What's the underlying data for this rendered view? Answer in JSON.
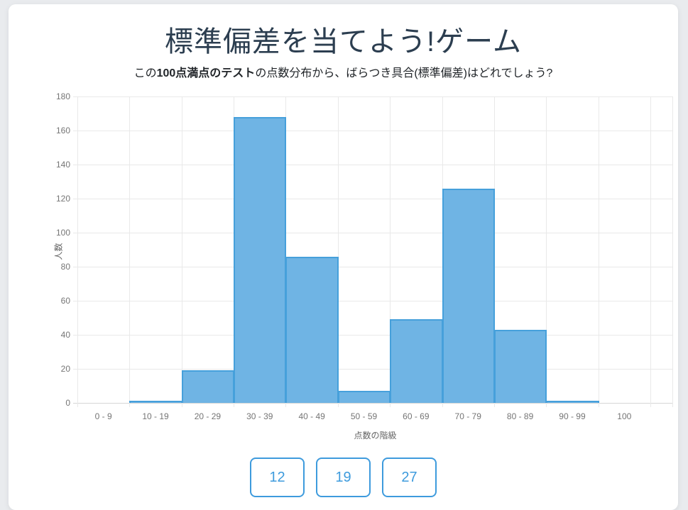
{
  "page": {
    "title": "標準偏差を当てよう!ゲーム",
    "subtitle_prefix": "この",
    "subtitle_bold": "100点満点のテスト",
    "subtitle_suffix": "の点数分布から、ばらつき具合(標準偏差)はどれでしょう?"
  },
  "chart_data": {
    "type": "bar",
    "title": "",
    "categories": [
      "0 - 9",
      "10 - 19",
      "20 - 29",
      "30 - 39",
      "40 - 49",
      "50 - 59",
      "60 - 69",
      "70 - 79",
      "80 - 89",
      "90 - 99",
      "100"
    ],
    "values": [
      0,
      1,
      19,
      168,
      86,
      7,
      49,
      126,
      43,
      1,
      0
    ],
    "xlabel": "点数の階級",
    "ylabel": "人数",
    "ylim": [
      0,
      180
    ],
    "ytick_step": 20,
    "yticks": [
      0,
      20,
      40,
      60,
      80,
      100,
      120,
      140,
      160,
      180
    ],
    "grid": true,
    "legend": false,
    "bar_style": "histogram-touching"
  },
  "answers": [
    {
      "label": "12"
    },
    {
      "label": "19"
    },
    {
      "label": "27"
    }
  ],
  "colors": {
    "page_bg": "#e9ebee",
    "card_bg": "#ffffff",
    "title_text": "#2c3e50",
    "subtitle_text": "#212529",
    "bar_fill": "#6fb4e4",
    "bar_border": "#46a0db",
    "accent": "#3e9bdd",
    "grid_line": "#e9e9e9",
    "axis_line": "#d6d6d6",
    "tick_text": "#757575",
    "axis_title_text": "#666666"
  }
}
